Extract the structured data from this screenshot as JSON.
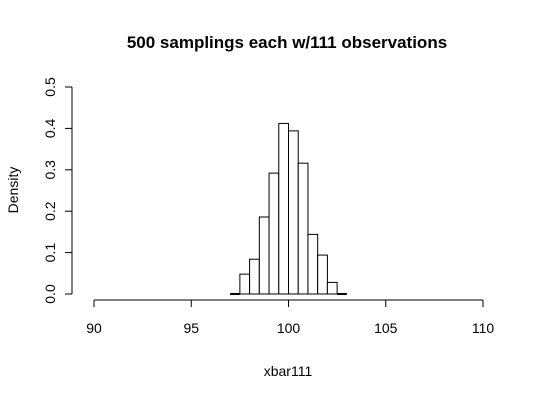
{
  "chart_data": {
    "type": "bar",
    "title": "500 samplings each w/111 observations",
    "xlabel": "xbar111",
    "ylabel": "Density",
    "xlim": [
      90,
      110
    ],
    "ylim": [
      0,
      0.5
    ],
    "x_ticks": [
      "90",
      "95",
      "100",
      "105",
      "110"
    ],
    "y_ticks": [
      "0.0",
      "0.1",
      "0.2",
      "0.3",
      "0.4",
      "0.5"
    ],
    "bin_width": 0.5,
    "bins": [
      {
        "x0": 97.0,
        "x1": 97.5,
        "density": 0.002
      },
      {
        "x0": 97.5,
        "x1": 98.0,
        "density": 0.048
      },
      {
        "x0": 98.0,
        "x1": 98.5,
        "density": 0.084
      },
      {
        "x0": 98.5,
        "x1": 99.0,
        "density": 0.186
      },
      {
        "x0": 99.0,
        "x1": 99.5,
        "density": 0.292
      },
      {
        "x0": 99.5,
        "x1": 100.0,
        "density": 0.412
      },
      {
        "x0": 100.0,
        "x1": 100.5,
        "density": 0.394
      },
      {
        "x0": 100.5,
        "x1": 101.0,
        "density": 0.316
      },
      {
        "x0": 101.0,
        "x1": 101.5,
        "density": 0.144
      },
      {
        "x0": 101.5,
        "x1": 102.0,
        "density": 0.094
      },
      {
        "x0": 102.0,
        "x1": 102.5,
        "density": 0.028
      },
      {
        "x0": 102.5,
        "x1": 103.0,
        "density": 0.002
      }
    ]
  }
}
